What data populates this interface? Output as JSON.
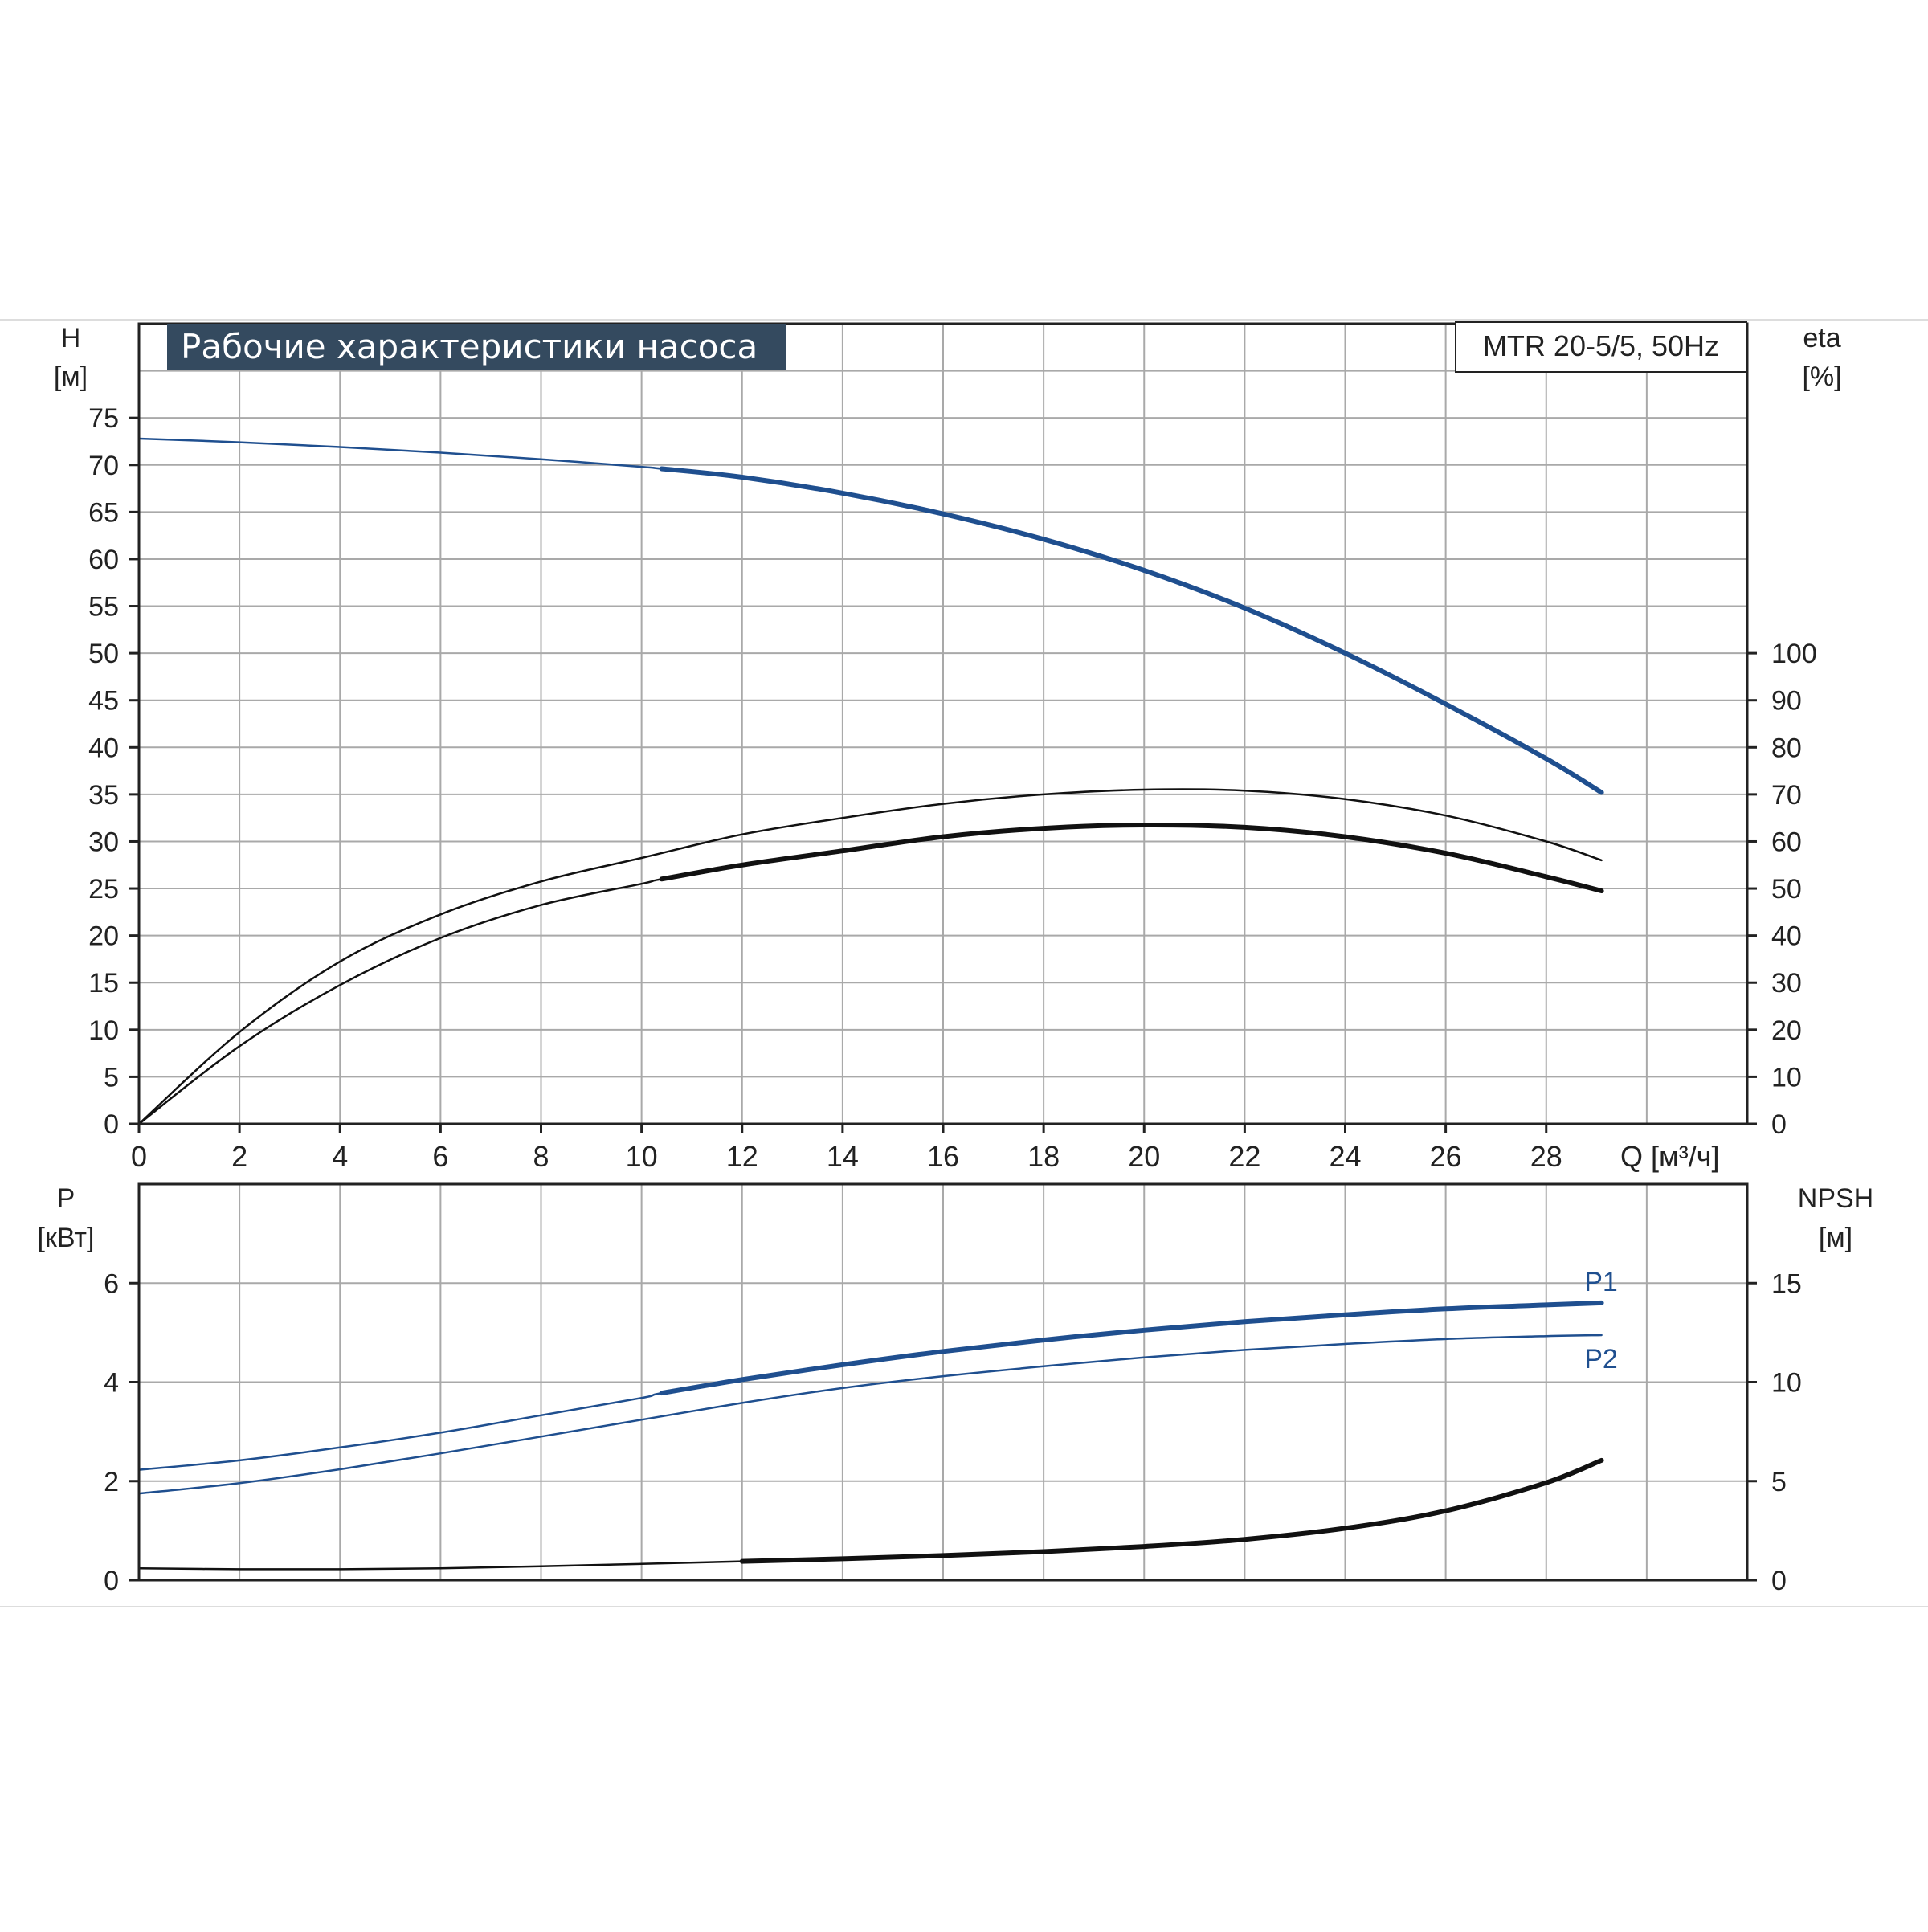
{
  "chart_data": {
    "title": "Рабочие характеристики насоса",
    "model": "MTR 20-5/5, 50Hz",
    "colors": {
      "blue": "#1f4f8f",
      "black": "#111111",
      "grid": "#a9a9a9",
      "title_bg": "#344a5f"
    },
    "x_axis": {
      "label": "Q [м³/ч]",
      "range": [
        0,
        32
      ],
      "ticks": [
        0,
        2,
        4,
        6,
        8,
        10,
        12,
        14,
        16,
        18,
        20,
        22,
        24,
        26,
        28
      ]
    },
    "top_chart": {
      "left_axis": {
        "label_line1": "H",
        "label_line2": "[м]",
        "range": [
          0,
          85
        ],
        "ticks": [
          0,
          5,
          10,
          15,
          20,
          25,
          30,
          35,
          40,
          45,
          50,
          55,
          60,
          65,
          70,
          75
        ]
      },
      "right_axis": {
        "label_line1": "eta",
        "label_line2": "[%]",
        "range": [
          0,
          170
        ],
        "ticks": [
          0,
          10,
          20,
          30,
          40,
          50,
          60,
          70,
          80,
          90,
          100
        ]
      },
      "series": [
        {
          "id": "head",
          "axis": "left",
          "color": "blue",
          "x": [
            0,
            2,
            4,
            6,
            8,
            10,
            10.4,
            12,
            14,
            16,
            18,
            20,
            22,
            24,
            26,
            28,
            29.1
          ],
          "y": [
            72.8,
            72.4,
            71.9,
            71.3,
            70.6,
            69.8,
            69.6,
            68.7,
            67.0,
            64.8,
            62.1,
            58.8,
            54.8,
            50.0,
            44.6,
            38.8,
            35.2
          ],
          "bold_from": 10.4
        },
        {
          "id": "efficiency-pump",
          "axis": "right",
          "color": "black",
          "x": [
            0,
            2,
            4,
            6,
            8,
            10,
            12,
            14,
            16,
            18,
            20,
            22,
            24,
            26,
            28,
            29.1
          ],
          "y": [
            0,
            19.5,
            34.5,
            44.5,
            51.5,
            56.5,
            61.5,
            65.0,
            68.0,
            70.0,
            71.0,
            70.8,
            69.0,
            65.5,
            60.0,
            56.0
          ],
          "bold_from": null
        },
        {
          "id": "efficiency-total",
          "axis": "right",
          "color": "black",
          "x": [
            0,
            2,
            4,
            6,
            8,
            10,
            10.4,
            12,
            14,
            16,
            18,
            20,
            22,
            24,
            26,
            28,
            29.1
          ],
          "y": [
            0,
            16.5,
            29.5,
            39.5,
            46.5,
            51.0,
            52.0,
            55.0,
            58.0,
            61.0,
            62.8,
            63.5,
            63.0,
            61.0,
            57.5,
            52.5,
            49.5
          ],
          "bold_from": 10.4
        }
      ]
    },
    "bottom_chart": {
      "left_axis": {
        "label_line1": "P",
        "label_line2": "[кВт]",
        "range": [
          0,
          8
        ],
        "ticks": [
          0,
          2,
          4,
          6
        ]
      },
      "right_axis": {
        "label_line1": "NPSH",
        "label_line2": "[м]",
        "range": [
          0,
          20
        ],
        "ticks": [
          0,
          5,
          10,
          15
        ]
      },
      "series": [
        {
          "id": "P1",
          "name": "P1",
          "axis": "left",
          "color": "blue",
          "x": [
            0,
            2,
            4,
            6,
            8,
            10,
            10.4,
            12,
            14,
            16,
            18,
            20,
            22,
            24,
            26,
            28,
            29.1
          ],
          "y": [
            2.23,
            2.42,
            2.68,
            2.98,
            3.33,
            3.68,
            3.78,
            4.05,
            4.35,
            4.62,
            4.85,
            5.05,
            5.22,
            5.36,
            5.48,
            5.56,
            5.6
          ],
          "bold_from": 10.4
        },
        {
          "id": "P2",
          "name": "P2",
          "axis": "left",
          "color": "blue",
          "x": [
            0,
            2,
            4,
            6,
            8,
            10,
            12,
            14,
            16,
            18,
            20,
            22,
            24,
            26,
            28,
            29.1
          ],
          "y": [
            1.75,
            1.96,
            2.24,
            2.56,
            2.9,
            3.24,
            3.58,
            3.88,
            4.12,
            4.32,
            4.5,
            4.65,
            4.77,
            4.87,
            4.93,
            4.95
          ],
          "bold_from": null
        },
        {
          "id": "NPSH",
          "axis": "right",
          "color": "black",
          "x": [
            0,
            2,
            4,
            6,
            8,
            10,
            12,
            14,
            16,
            18,
            20,
            22,
            24,
            26,
            28,
            29.1
          ],
          "y": [
            0.6,
            0.55,
            0.55,
            0.6,
            0.7,
            0.82,
            0.95,
            1.08,
            1.24,
            1.44,
            1.7,
            2.06,
            2.62,
            3.5,
            4.92,
            6.05
          ],
          "bold_from": 10.4
        }
      ]
    }
  }
}
